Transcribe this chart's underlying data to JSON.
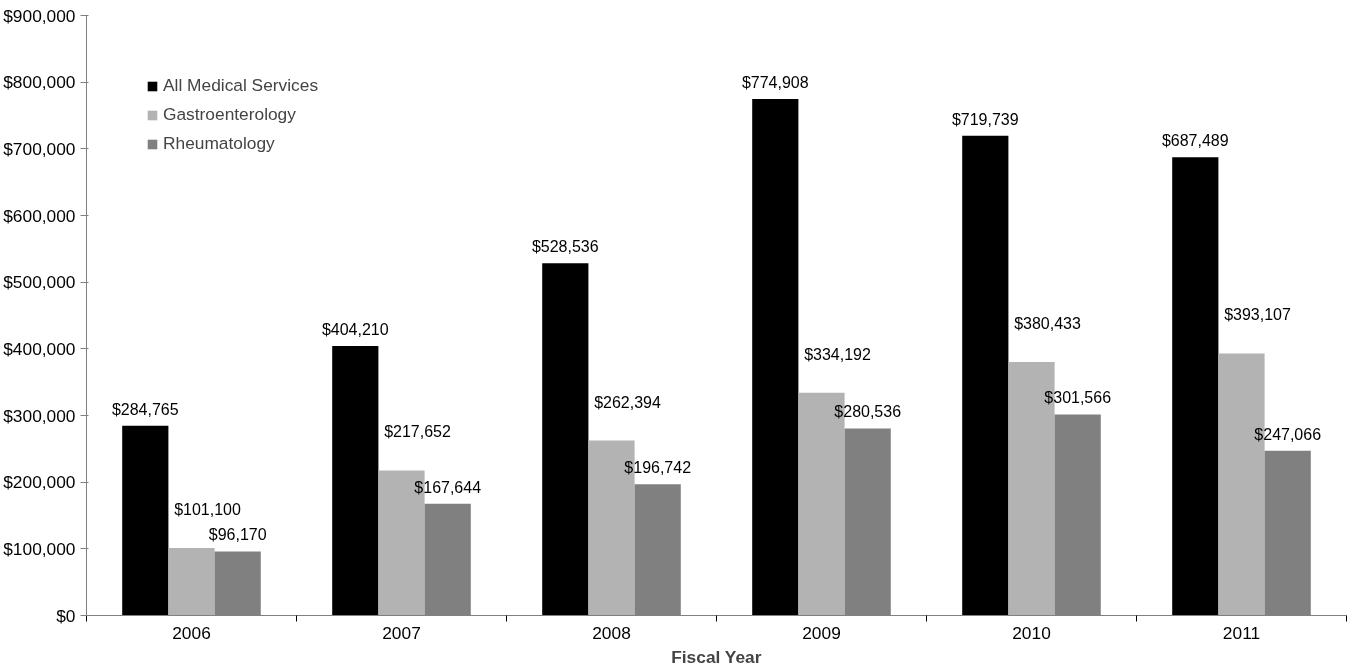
{
  "chart_data": {
    "type": "bar",
    "xlabel": "Fiscal Year",
    "categories": [
      "2006",
      "2007",
      "2008",
      "2009",
      "2010",
      "2011"
    ],
    "series": [
      {
        "name": "All Medical Services",
        "color": "#000000",
        "values": [
          284765,
          404210,
          528536,
          774908,
          719739,
          687489
        ],
        "value_labels": [
          "$284,765",
          "$404,210",
          "$528,536",
          "$774,908",
          "$719,739",
          "$687,489"
        ]
      },
      {
        "name": "Gastroenterology",
        "color": "#b3b3b3",
        "values": [
          101100,
          217652,
          262394,
          334192,
          380433,
          393107
        ],
        "value_labels": [
          "$101,100",
          "$217,652",
          "$262,394",
          "$334,192",
          "$380,433",
          "$393,107"
        ]
      },
      {
        "name": "Rheumatology",
        "color": "#808080",
        "values": [
          96170,
          167644,
          196742,
          280536,
          301566,
          247066
        ],
        "value_labels": [
          "$96,170",
          "$167,644",
          "$196,742",
          "$280,536",
          "$301,566",
          "$247,066"
        ]
      }
    ],
    "ylim": [
      0,
      900000
    ],
    "yticks": [
      {
        "value": 0,
        "label": "$0"
      },
      {
        "value": 100000,
        "label": "$100,000"
      },
      {
        "value": 200000,
        "label": "$200,000"
      },
      {
        "value": 300000,
        "label": "$300,000"
      },
      {
        "value": 400000,
        "label": "$400,000"
      },
      {
        "value": 500000,
        "label": "$500,000"
      },
      {
        "value": 600000,
        "label": "$600,000"
      },
      {
        "value": 700000,
        "label": "$700,000"
      },
      {
        "value": 800000,
        "label": "$800,000"
      },
      {
        "value": 900000,
        "label": "$900,000"
      }
    ],
    "grid": false,
    "legend": "top left"
  }
}
